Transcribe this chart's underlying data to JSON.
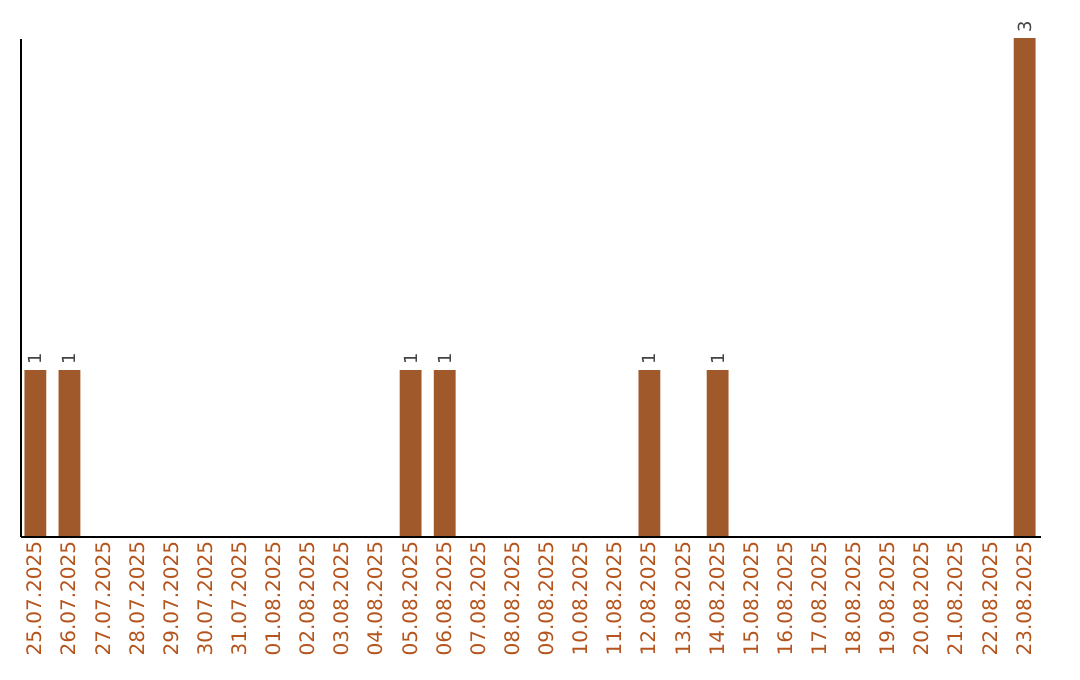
{
  "chart_data": {
    "type": "bar",
    "categories": [
      "25.07.2025",
      "26.07.2025",
      "27.07.2025",
      "28.07.2025",
      "29.07.2025",
      "30.07.2025",
      "31.07.2025",
      "01.08.2025",
      "02.08.2025",
      "03.08.2025",
      "04.08.2025",
      "05.08.2025",
      "06.08.2025",
      "07.08.2025",
      "08.08.2025",
      "09.08.2025",
      "10.08.2025",
      "11.08.2025",
      "12.08.2025",
      "13.08.2025",
      "14.08.2025",
      "15.08.2025",
      "16.08.2025",
      "17.08.2025",
      "18.08.2025",
      "19.08.2025",
      "20.08.2025",
      "21.08.2025",
      "22.08.2025",
      "23.08.2025"
    ],
    "values": [
      1,
      1,
      0,
      0,
      0,
      0,
      0,
      0,
      0,
      0,
      0,
      1,
      1,
      0,
      0,
      0,
      0,
      0,
      1,
      0,
      1,
      0,
      0,
      0,
      0,
      0,
      0,
      0,
      0,
      3
    ],
    "value_labels": [
      "1",
      "1",
      null,
      null,
      null,
      null,
      null,
      null,
      null,
      null,
      null,
      "1",
      "1",
      null,
      null,
      null,
      null,
      null,
      "1",
      null,
      "1",
      null,
      null,
      null,
      null,
      null,
      null,
      null,
      null,
      "3"
    ],
    "color": "#a0592a",
    "grid": false,
    "tick_labels": "x"
  }
}
